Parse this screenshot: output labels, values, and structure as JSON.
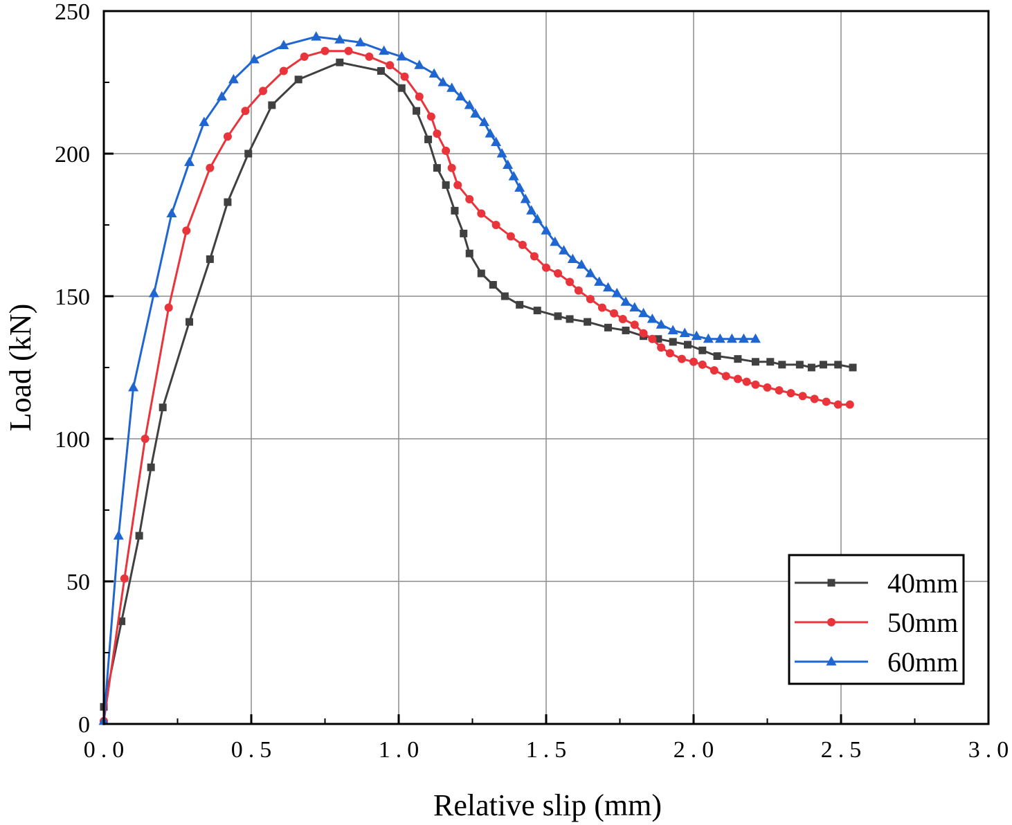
{
  "chart_data": {
    "type": "line",
    "title": "",
    "xlabel": "Relative slip (mm)",
    "ylabel": "Load (kN)",
    "xlim": [
      0,
      3.0
    ],
    "ylim": [
      0,
      250
    ],
    "x_ticks": [
      "0.0",
      "0.5",
      "1.0",
      "1.5",
      "2.0",
      "2.5",
      "3.0"
    ],
    "y_ticks": [
      "0",
      "50",
      "100",
      "150",
      "200",
      "250"
    ],
    "grid": true,
    "legend_position": "bottom-right",
    "series": [
      {
        "name": "40mm",
        "color": "#404040",
        "marker": "square",
        "points": [
          [
            0.0,
            6
          ],
          [
            0.06,
            36
          ],
          [
            0.12,
            66
          ],
          [
            0.16,
            90
          ],
          [
            0.2,
            111
          ],
          [
            0.29,
            141
          ],
          [
            0.36,
            163
          ],
          [
            0.42,
            183
          ],
          [
            0.49,
            200
          ],
          [
            0.57,
            217
          ],
          [
            0.66,
            226
          ],
          [
            0.8,
            232
          ],
          [
            0.94,
            229
          ],
          [
            1.01,
            223
          ],
          [
            1.06,
            215
          ],
          [
            1.1,
            205
          ],
          [
            1.13,
            195
          ],
          [
            1.16,
            189
          ],
          [
            1.19,
            180
          ],
          [
            1.22,
            172
          ],
          [
            1.24,
            165
          ],
          [
            1.28,
            158
          ],
          [
            1.32,
            154
          ],
          [
            1.36,
            150
          ],
          [
            1.41,
            147
          ],
          [
            1.47,
            145
          ],
          [
            1.54,
            143
          ],
          [
            1.58,
            142
          ],
          [
            1.64,
            141
          ],
          [
            1.71,
            139
          ],
          [
            1.77,
            138
          ],
          [
            1.83,
            136
          ],
          [
            1.88,
            135
          ],
          [
            1.93,
            134
          ],
          [
            1.98,
            133
          ],
          [
            2.03,
            131
          ],
          [
            2.08,
            129
          ],
          [
            2.15,
            128
          ],
          [
            2.21,
            127
          ],
          [
            2.26,
            127
          ],
          [
            2.3,
            126
          ],
          [
            2.36,
            126
          ],
          [
            2.4,
            125
          ],
          [
            2.44,
            126
          ],
          [
            2.49,
            126
          ],
          [
            2.54,
            125
          ]
        ]
      },
      {
        "name": "50mm",
        "color": "#e8343a",
        "marker": "circle",
        "points": [
          [
            0.0,
            1
          ],
          [
            0.07,
            51
          ],
          [
            0.14,
            100
          ],
          [
            0.22,
            146
          ],
          [
            0.28,
            173
          ],
          [
            0.36,
            195
          ],
          [
            0.42,
            206
          ],
          [
            0.48,
            215
          ],
          [
            0.54,
            222
          ],
          [
            0.61,
            229
          ],
          [
            0.68,
            234
          ],
          [
            0.75,
            236
          ],
          [
            0.83,
            236
          ],
          [
            0.9,
            234
          ],
          [
            0.97,
            231
          ],
          [
            1.02,
            227
          ],
          [
            1.07,
            220
          ],
          [
            1.11,
            213
          ],
          [
            1.13,
            207
          ],
          [
            1.16,
            201
          ],
          [
            1.18,
            195
          ],
          [
            1.2,
            189
          ],
          [
            1.24,
            184
          ],
          [
            1.28,
            179
          ],
          [
            1.33,
            175
          ],
          [
            1.38,
            171
          ],
          [
            1.42,
            168
          ],
          [
            1.46,
            164
          ],
          [
            1.5,
            160
          ],
          [
            1.54,
            158
          ],
          [
            1.58,
            155
          ],
          [
            1.61,
            152
          ],
          [
            1.65,
            149
          ],
          [
            1.69,
            146
          ],
          [
            1.73,
            144
          ],
          [
            1.76,
            142
          ],
          [
            1.8,
            140
          ],
          [
            1.83,
            137
          ],
          [
            1.86,
            135
          ],
          [
            1.89,
            132
          ],
          [
            1.92,
            130
          ],
          [
            1.96,
            128
          ],
          [
            2.0,
            127
          ],
          [
            2.03,
            126
          ],
          [
            2.07,
            124
          ],
          [
            2.11,
            122
          ],
          [
            2.15,
            121
          ],
          [
            2.18,
            120
          ],
          [
            2.21,
            119
          ],
          [
            2.25,
            118
          ],
          [
            2.29,
            117
          ],
          [
            2.33,
            116
          ],
          [
            2.37,
            115
          ],
          [
            2.41,
            114
          ],
          [
            2.45,
            113
          ],
          [
            2.49,
            112
          ],
          [
            2.53,
            112
          ]
        ]
      },
      {
        "name": "60mm",
        "color": "#1f66d1",
        "marker": "triangle",
        "points": [
          [
            0.0,
            1
          ],
          [
            0.05,
            66
          ],
          [
            0.1,
            118
          ],
          [
            0.17,
            151
          ],
          [
            0.23,
            179
          ],
          [
            0.29,
            197
          ],
          [
            0.34,
            211
          ],
          [
            0.4,
            220
          ],
          [
            0.44,
            226
          ],
          [
            0.51,
            233
          ],
          [
            0.61,
            238
          ],
          [
            0.72,
            241
          ],
          [
            0.8,
            240
          ],
          [
            0.87,
            239
          ],
          [
            0.95,
            236
          ],
          [
            1.01,
            234
          ],
          [
            1.07,
            231
          ],
          [
            1.12,
            228
          ],
          [
            1.15,
            225
          ],
          [
            1.18,
            223
          ],
          [
            1.21,
            220
          ],
          [
            1.24,
            217
          ],
          [
            1.26,
            214
          ],
          [
            1.29,
            211
          ],
          [
            1.31,
            207
          ],
          [
            1.33,
            204
          ],
          [
            1.35,
            200
          ],
          [
            1.37,
            196
          ],
          [
            1.39,
            192
          ],
          [
            1.41,
            188
          ],
          [
            1.43,
            184
          ],
          [
            1.45,
            180
          ],
          [
            1.47,
            177
          ],
          [
            1.5,
            173
          ],
          [
            1.53,
            169
          ],
          [
            1.56,
            166
          ],
          [
            1.59,
            163
          ],
          [
            1.62,
            161
          ],
          [
            1.65,
            158
          ],
          [
            1.68,
            155
          ],
          [
            1.71,
            153
          ],
          [
            1.74,
            151
          ],
          [
            1.77,
            148
          ],
          [
            1.8,
            146
          ],
          [
            1.83,
            144
          ],
          [
            1.86,
            142
          ],
          [
            1.89,
            140
          ],
          [
            1.93,
            138
          ],
          [
            1.97,
            137
          ],
          [
            2.01,
            136
          ],
          [
            2.05,
            135
          ],
          [
            2.09,
            135
          ],
          [
            2.13,
            135
          ],
          [
            2.17,
            135
          ],
          [
            2.21,
            135
          ]
        ]
      }
    ]
  }
}
